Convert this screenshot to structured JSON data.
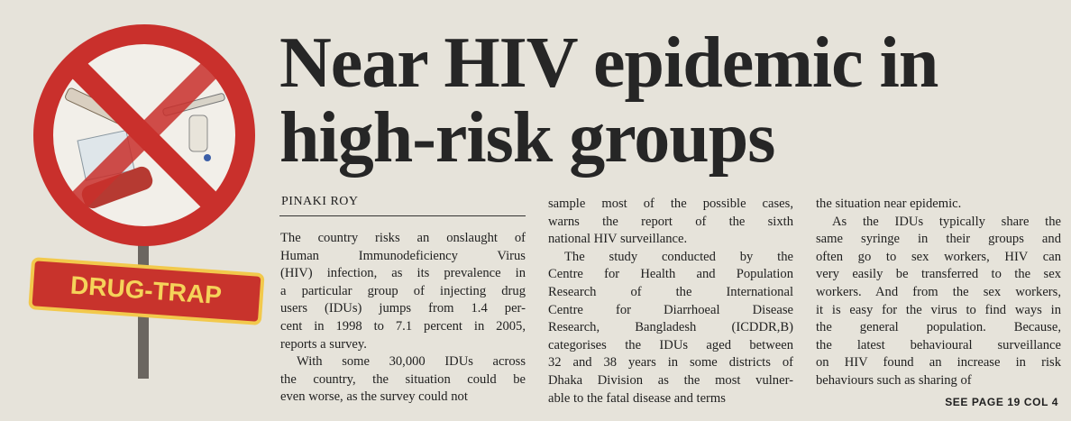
{
  "headline": {
    "lines": [
      "Near HIV epidemic in",
      "high-risk groups"
    ]
  },
  "illustration": {
    "sign": "DRUG-TRAP"
  },
  "byline": "PINAKI ROY",
  "columns": [
    {
      "paragraphs": [
        {
          "lines": [
            "The country risks an onslaught of",
            "Human Immunodeficiency Virus",
            "(HIV) infection, as its prevalence in",
            "a particular group of injecting drug",
            "users (IDUs) jumps from 1.4 per-",
            "cent in 1998 to 7.1 percent in 2005,",
            "reports a survey."
          ]
        },
        {
          "lines": [
            "With some 30,000 IDUs across",
            "the country, the situation could be",
            "even worse, as the survey could not"
          ]
        }
      ]
    },
    {
      "paragraphs": [
        {
          "lines": [
            "sample most of the possible cases,",
            "warns the report of the sixth",
            "national HIV surveillance."
          ]
        },
        {
          "lines": [
            "The study conducted by the",
            "Centre for Health and Population",
            "Research of the International",
            "Centre for Diarrhoeal Disease",
            "Research, Bangladesh (ICDDR,B)",
            "categorises the IDUs aged between",
            "32 and 38 years in some districts of",
            "Dhaka Division as the most vulner-",
            "able to the fatal disease and terms"
          ]
        }
      ]
    },
    {
      "paragraphs": [
        {
          "lines": [
            "the situation near epidemic."
          ]
        },
        {
          "lines": [
            "As the IDUs typically share the",
            "same syringe in their groups and",
            "often go to sex workers, HIV can",
            "very easily be transferred to the sex",
            "workers. And from the sex workers,",
            "it is easy for the virus to find ways in",
            "the general population. Because,",
            "the latest behavioural surveillance",
            "on HIV found an increase in risk",
            "behaviours such as sharing of"
          ]
        }
      ]
    }
  ],
  "jump": "SEE PAGE 19 COL 4"
}
